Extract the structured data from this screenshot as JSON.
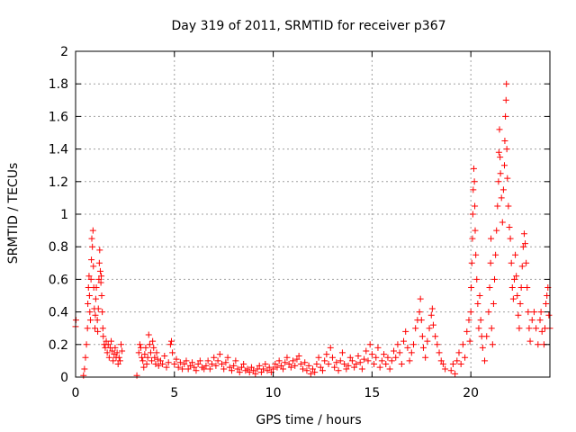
{
  "chart_data": {
    "type": "scatter",
    "title": "Day 319 of 2011, SRMTID for receiver p367",
    "xlabel": "GPS time / hours",
    "ylabel": "SRMTID / TECUs",
    "xlim": [
      0,
      24
    ],
    "ylim": [
      0,
      2
    ],
    "xticks": [
      0,
      5,
      10,
      15,
      20
    ],
    "yticks": [
      0,
      0.2,
      0.4,
      0.6,
      0.8,
      1,
      1.2,
      1.4,
      1.6,
      1.8,
      2
    ],
    "ytick_labels": [
      "0",
      "0.2",
      "0.4",
      "0.6",
      "0.8",
      "1",
      "1.2",
      "1.4",
      "1.6",
      "1.8",
      "2"
    ],
    "grid": true,
    "marker": "plus",
    "color": "#ff0000",
    "series": [
      {
        "name": "SRMTID",
        "points": [
          [
            0.0,
            0.31
          ],
          [
            0.02,
            0.35
          ],
          [
            0.4,
            0.01
          ],
          [
            0.45,
            0.05
          ],
          [
            0.5,
            0.12
          ],
          [
            0.55,
            0.2
          ],
          [
            0.6,
            0.3
          ],
          [
            0.62,
            0.45
          ],
          [
            0.65,
            0.55
          ],
          [
            0.68,
            0.62
          ],
          [
            0.7,
            0.5
          ],
          [
            0.72,
            0.4
          ],
          [
            0.75,
            0.35
          ],
          [
            0.78,
            0.6
          ],
          [
            0.8,
            0.72
          ],
          [
            0.82,
            0.85
          ],
          [
            0.85,
            0.8
          ],
          [
            0.88,
            0.9
          ],
          [
            0.9,
            0.68
          ],
          [
            0.92,
            0.55
          ],
          [
            0.95,
            0.42
          ],
          [
            0.98,
            0.3
          ],
          [
            1.0,
            0.38
          ],
          [
            1.02,
            0.48
          ],
          [
            1.05,
            0.55
          ],
          [
            1.1,
            0.35
          ],
          [
            1.12,
            0.28
          ],
          [
            1.15,
            0.42
          ],
          [
            1.18,
            0.6
          ],
          [
            1.2,
            0.7
          ],
          [
            1.22,
            0.78
          ],
          [
            1.25,
            0.65
          ],
          [
            1.28,
            0.58
          ],
          [
            1.3,
            0.62
          ],
          [
            1.32,
            0.5
          ],
          [
            1.35,
            0.4
          ],
          [
            1.38,
            0.3
          ],
          [
            1.4,
            0.25
          ],
          [
            1.45,
            0.2
          ],
          [
            1.5,
            0.18
          ],
          [
            1.55,
            0.22
          ],
          [
            1.6,
            0.15
          ],
          [
            1.65,
            0.2
          ],
          [
            1.7,
            0.12
          ],
          [
            1.75,
            0.18
          ],
          [
            1.8,
            0.22
          ],
          [
            1.85,
            0.16
          ],
          [
            1.9,
            0.1
          ],
          [
            1.95,
            0.14
          ],
          [
            2.0,
            0.18
          ],
          [
            2.05,
            0.12
          ],
          [
            2.1,
            0.15
          ],
          [
            2.15,
            0.08
          ],
          [
            2.2,
            0.12
          ],
          [
            2.25,
            0.1
          ],
          [
            2.3,
            0.2
          ],
          [
            2.35,
            0.16
          ],
          [
            3.1,
            0.01
          ],
          [
            3.2,
            0.15
          ],
          [
            3.25,
            0.2
          ],
          [
            3.3,
            0.18
          ],
          [
            3.35,
            0.12
          ],
          [
            3.4,
            0.1
          ],
          [
            3.45,
            0.06
          ],
          [
            3.5,
            0.14
          ],
          [
            3.55,
            0.18
          ],
          [
            3.6,
            0.08
          ],
          [
            3.65,
            0.12
          ],
          [
            3.7,
            0.26
          ],
          [
            3.75,
            0.2
          ],
          [
            3.8,
            0.15
          ],
          [
            3.85,
            0.1
          ],
          [
            3.9,
            0.22
          ],
          [
            3.95,
            0.18
          ],
          [
            4.0,
            0.12
          ],
          [
            4.05,
            0.08
          ],
          [
            4.1,
            0.15
          ],
          [
            4.15,
            0.11
          ],
          [
            4.2,
            0.07
          ],
          [
            4.3,
            0.1
          ],
          [
            4.4,
            0.08
          ],
          [
            4.5,
            0.13
          ],
          [
            4.6,
            0.06
          ],
          [
            4.7,
            0.09
          ],
          [
            4.8,
            0.2
          ],
          [
            4.85,
            0.22
          ],
          [
            4.9,
            0.15
          ],
          [
            5.0,
            0.08
          ],
          [
            5.1,
            0.11
          ],
          [
            5.2,
            0.06
          ],
          [
            5.3,
            0.09
          ],
          [
            5.4,
            0.05
          ],
          [
            5.5,
            0.08
          ],
          [
            5.6,
            0.1
          ],
          [
            5.7,
            0.05
          ],
          [
            5.8,
            0.07
          ],
          [
            5.9,
            0.09
          ],
          [
            6.0,
            0.06
          ],
          [
            6.1,
            0.04
          ],
          [
            6.2,
            0.08
          ],
          [
            6.3,
            0.1
          ],
          [
            6.4,
            0.06
          ],
          [
            6.5,
            0.05
          ],
          [
            6.6,
            0.07
          ],
          [
            6.7,
            0.1
          ],
          [
            6.8,
            0.05
          ],
          [
            6.9,
            0.08
          ],
          [
            7.0,
            0.12
          ],
          [
            7.1,
            0.07
          ],
          [
            7.2,
            0.1
          ],
          [
            7.3,
            0.14
          ],
          [
            7.4,
            0.08
          ],
          [
            7.5,
            0.05
          ],
          [
            7.6,
            0.09
          ],
          [
            7.7,
            0.12
          ],
          [
            7.8,
            0.06
          ],
          [
            7.9,
            0.04
          ],
          [
            8.0,
            0.07
          ],
          [
            8.1,
            0.1
          ],
          [
            8.2,
            0.05
          ],
          [
            8.3,
            0.03
          ],
          [
            8.4,
            0.06
          ],
          [
            8.5,
            0.08
          ],
          [
            8.6,
            0.04
          ],
          [
            8.7,
            0.05
          ],
          [
            8.8,
            0.03
          ],
          [
            8.9,
            0.06
          ],
          [
            9.0,
            0.04
          ],
          [
            9.1,
            0.02
          ],
          [
            9.2,
            0.05
          ],
          [
            9.3,
            0.07
          ],
          [
            9.4,
            0.03
          ],
          [
            9.5,
            0.05
          ],
          [
            9.6,
            0.08
          ],
          [
            9.7,
            0.04
          ],
          [
            9.8,
            0.06
          ],
          [
            9.9,
            0.03
          ],
          [
            10.0,
            0.05
          ],
          [
            10.1,
            0.08
          ],
          [
            10.2,
            0.06
          ],
          [
            10.3,
            0.1
          ],
          [
            10.4,
            0.07
          ],
          [
            10.5,
            0.05
          ],
          [
            10.6,
            0.09
          ],
          [
            10.7,
            0.12
          ],
          [
            10.8,
            0.08
          ],
          [
            10.9,
            0.06
          ],
          [
            11.0,
            0.1
          ],
          [
            11.1,
            0.07
          ],
          [
            11.2,
            0.11
          ],
          [
            11.3,
            0.13
          ],
          [
            11.4,
            0.08
          ],
          [
            11.5,
            0.05
          ],
          [
            11.6,
            0.09
          ],
          [
            11.7,
            0.04
          ],
          [
            11.8,
            0.07
          ],
          [
            11.9,
            0.02
          ],
          [
            12.0,
            0.05
          ],
          [
            12.1,
            0.03
          ],
          [
            12.2,
            0.08
          ],
          [
            12.3,
            0.12
          ],
          [
            12.4,
            0.06
          ],
          [
            12.5,
            0.04
          ],
          [
            12.6,
            0.1
          ],
          [
            12.7,
            0.14
          ],
          [
            12.8,
            0.08
          ],
          [
            12.9,
            0.18
          ],
          [
            13.0,
            0.12
          ],
          [
            13.1,
            0.06
          ],
          [
            13.2,
            0.09
          ],
          [
            13.3,
            0.04
          ],
          [
            13.4,
            0.1
          ],
          [
            13.5,
            0.15
          ],
          [
            13.6,
            0.08
          ],
          [
            13.7,
            0.05
          ],
          [
            13.8,
            0.07
          ],
          [
            13.9,
            0.12
          ],
          [
            14.0,
            0.1
          ],
          [
            14.1,
            0.06
          ],
          [
            14.2,
            0.08
          ],
          [
            14.3,
            0.13
          ],
          [
            14.4,
            0.09
          ],
          [
            14.5,
            0.05
          ],
          [
            14.6,
            0.11
          ],
          [
            14.7,
            0.16
          ],
          [
            14.8,
            0.1
          ],
          [
            14.9,
            0.2
          ],
          [
            15.0,
            0.14
          ],
          [
            15.1,
            0.08
          ],
          [
            15.2,
            0.12
          ],
          [
            15.3,
            0.18
          ],
          [
            15.4,
            0.06
          ],
          [
            15.5,
            0.1
          ],
          [
            15.6,
            0.14
          ],
          [
            15.7,
            0.08
          ],
          [
            15.8,
            0.12
          ],
          [
            15.9,
            0.05
          ],
          [
            16.0,
            0.1
          ],
          [
            16.1,
            0.16
          ],
          [
            16.2,
            0.12
          ],
          [
            16.3,
            0.2
          ],
          [
            16.4,
            0.15
          ],
          [
            16.5,
            0.08
          ],
          [
            16.6,
            0.22
          ],
          [
            16.7,
            0.28
          ],
          [
            16.8,
            0.18
          ],
          [
            16.9,
            0.1
          ],
          [
            17.0,
            0.15
          ],
          [
            17.1,
            0.2
          ],
          [
            17.2,
            0.3
          ],
          [
            17.3,
            0.35
          ],
          [
            17.4,
            0.4
          ],
          [
            17.45,
            0.48
          ],
          [
            17.5,
            0.35
          ],
          [
            17.55,
            0.25
          ],
          [
            17.6,
            0.18
          ],
          [
            17.7,
            0.12
          ],
          [
            17.8,
            0.22
          ],
          [
            17.9,
            0.3
          ],
          [
            18.0,
            0.38
          ],
          [
            18.05,
            0.42
          ],
          [
            18.1,
            0.32
          ],
          [
            18.2,
            0.25
          ],
          [
            18.3,
            0.2
          ],
          [
            18.4,
            0.15
          ],
          [
            18.5,
            0.1
          ],
          [
            18.6,
            0.08
          ],
          [
            18.7,
            0.05
          ],
          [
            19.0,
            0.04
          ],
          [
            19.1,
            0.08
          ],
          [
            19.2,
            0.02
          ],
          [
            19.3,
            0.1
          ],
          [
            19.4,
            0.15
          ],
          [
            19.5,
            0.08
          ],
          [
            19.6,
            0.2
          ],
          [
            19.7,
            0.12
          ],
          [
            19.8,
            0.28
          ],
          [
            19.9,
            0.35
          ],
          [
            19.95,
            0.22
          ],
          [
            20.0,
            0.4
          ],
          [
            20.02,
            0.55
          ],
          [
            20.05,
            0.7
          ],
          [
            20.08,
            0.85
          ],
          [
            20.1,
            1.0
          ],
          [
            20.12,
            1.15
          ],
          [
            20.15,
            1.28
          ],
          [
            20.18,
            1.2
          ],
          [
            20.2,
            1.05
          ],
          [
            20.22,
            0.9
          ],
          [
            20.25,
            0.75
          ],
          [
            20.3,
            0.6
          ],
          [
            20.35,
            0.45
          ],
          [
            20.4,
            0.3
          ],
          [
            20.45,
            0.5
          ],
          [
            20.5,
            0.35
          ],
          [
            20.55,
            0.25
          ],
          [
            20.6,
            0.18
          ],
          [
            20.7,
            0.1
          ],
          [
            20.8,
            0.25
          ],
          [
            20.9,
            0.4
          ],
          [
            20.95,
            0.55
          ],
          [
            21.0,
            0.7
          ],
          [
            21.02,
            0.85
          ],
          [
            21.05,
            0.3
          ],
          [
            21.1,
            0.2
          ],
          [
            21.15,
            0.45
          ],
          [
            21.2,
            0.6
          ],
          [
            21.25,
            0.75
          ],
          [
            21.3,
            0.9
          ],
          [
            21.35,
            1.05
          ],
          [
            21.4,
            1.2
          ],
          [
            21.42,
            1.38
          ],
          [
            21.45,
            1.52
          ],
          [
            21.48,
            1.35
          ],
          [
            21.5,
            1.25
          ],
          [
            21.55,
            1.1
          ],
          [
            21.6,
            0.95
          ],
          [
            21.65,
            1.15
          ],
          [
            21.7,
            1.3
          ],
          [
            21.72,
            1.45
          ],
          [
            21.75,
            1.6
          ],
          [
            21.78,
            1.7
          ],
          [
            21.8,
            1.8
          ],
          [
            21.82,
            1.4
          ],
          [
            21.85,
            1.22
          ],
          [
            21.9,
            1.05
          ],
          [
            21.95,
            0.92
          ],
          [
            22.0,
            0.85
          ],
          [
            22.05,
            0.7
          ],
          [
            22.1,
            0.55
          ],
          [
            22.15,
            0.48
          ],
          [
            22.2,
            0.6
          ],
          [
            22.25,
            0.75
          ],
          [
            22.3,
            0.62
          ],
          [
            22.35,
            0.5
          ],
          [
            22.4,
            0.38
          ],
          [
            22.45,
            0.3
          ],
          [
            22.5,
            0.45
          ],
          [
            22.55,
            0.55
          ],
          [
            22.6,
            0.68
          ],
          [
            22.65,
            0.8
          ],
          [
            22.7,
            0.88
          ],
          [
            22.75,
            0.82
          ],
          [
            22.8,
            0.7
          ],
          [
            22.85,
            0.55
          ],
          [
            22.9,
            0.4
          ],
          [
            22.95,
            0.3
          ],
          [
            23.0,
            0.22
          ],
          [
            23.1,
            0.35
          ],
          [
            23.2,
            0.4
          ],
          [
            23.3,
            0.3
          ],
          [
            23.4,
            0.2
          ],
          [
            23.5,
            0.35
          ],
          [
            23.55,
            0.4
          ],
          [
            23.6,
            0.28
          ],
          [
            23.7,
            0.2
          ],
          [
            23.75,
            0.3
          ],
          [
            23.8,
            0.45
          ],
          [
            23.85,
            0.5
          ],
          [
            23.9,
            0.55
          ],
          [
            23.95,
            0.38
          ],
          [
            24.0,
            0.3
          ]
        ]
      }
    ]
  }
}
